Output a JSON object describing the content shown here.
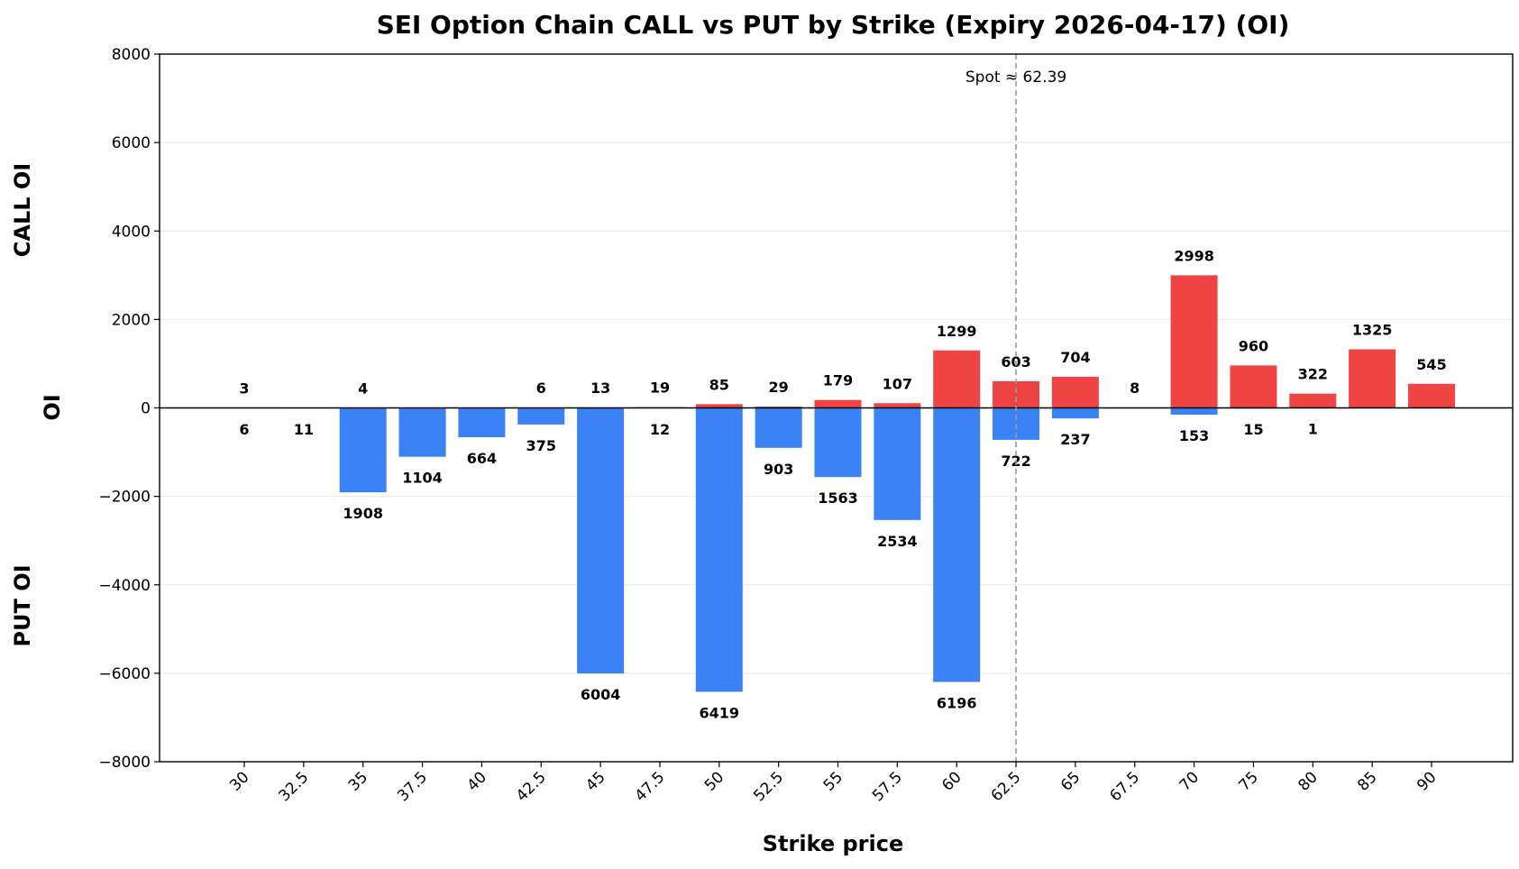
{
  "chart_data": {
    "type": "bar",
    "title": "SEI Option Chain CALL vs PUT by Strike (Expiry 2026-04-17) (OI)",
    "xlabel": "Strike price",
    "ylabel": "OI",
    "ylabel_top": "CALL OI",
    "ylabel_bottom": "PUT OI",
    "ylim": [
      -8000,
      8000
    ],
    "yticks": [
      -8000,
      -6000,
      -4000,
      -2000,
      0,
      2000,
      4000,
      6000,
      8000
    ],
    "ytick_labels": [
      "−8000",
      "−6000",
      "−4000",
      "−2000",
      "0",
      "2000",
      "4000",
      "6000",
      "8000"
    ],
    "categories": [
      "30",
      "32.5",
      "35",
      "37.5",
      "40",
      "42.5",
      "45",
      "47.5",
      "50",
      "52.5",
      "55",
      "57.5",
      "60",
      "62.5",
      "65",
      "67.5",
      "70",
      "75",
      "80",
      "85",
      "90"
    ],
    "series": [
      {
        "name": "CALL",
        "color": "#ef4444",
        "values": [
          3,
          null,
          4,
          null,
          null,
          6,
          13,
          19,
          85,
          29,
          179,
          107,
          1299,
          603,
          704,
          8,
          2998,
          960,
          322,
          1325,
          545
        ],
        "labels": [
          "3",
          "",
          "4",
          "",
          "",
          "6",
          "13",
          "19",
          "85",
          "29",
          "179",
          "107",
          "1299",
          "603",
          "704",
          "8",
          "2998",
          "960",
          "322",
          "1325",
          "545"
        ]
      },
      {
        "name": "PUT",
        "color": "#3b82f6",
        "values": [
          6,
          11,
          1908,
          1104,
          664,
          375,
          6004,
          12,
          6419,
          903,
          1563,
          2534,
          6196,
          722,
          237,
          null,
          153,
          15,
          1,
          null,
          null
        ],
        "labels": [
          "6",
          "11",
          "1908",
          "1104",
          "664",
          "375",
          "6004",
          "12",
          "6419",
          "903",
          "1563",
          "2534",
          "6196",
          "722",
          "237",
          "",
          "153",
          "15",
          "1",
          "",
          ""
        ]
      }
    ],
    "spot": {
      "value": 62.39,
      "position_index": 13.0,
      "label": "Spot ≈ 62.39"
    },
    "grid": true
  }
}
